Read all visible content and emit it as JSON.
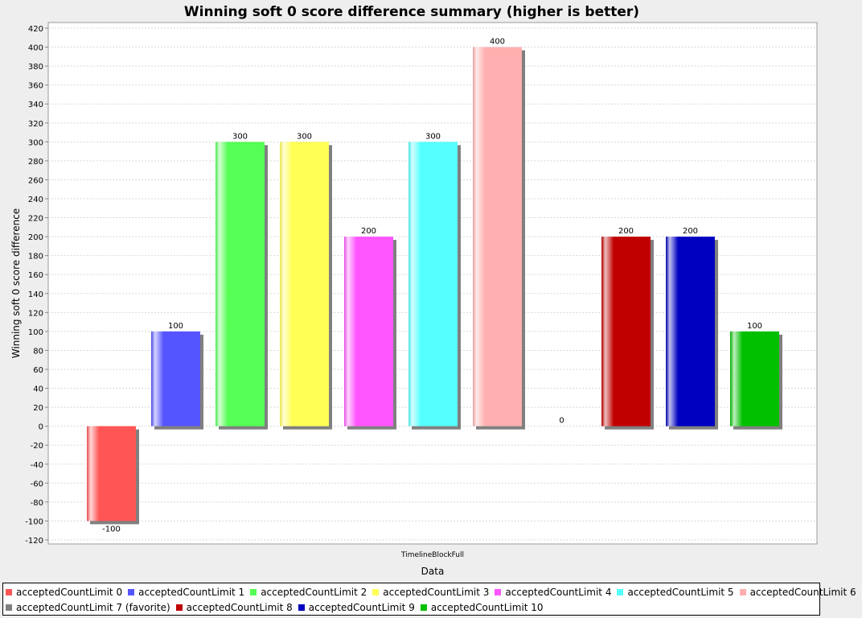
{
  "chart_data": {
    "type": "bar",
    "title": "Winning soft 0 score difference summary (higher is better)",
    "xlabel": "Data",
    "ylabel": "Winning soft 0 score difference",
    "categories": [
      "TimelineBlockFull"
    ],
    "ylim": [
      -120,
      420
    ],
    "ytick_step": 20,
    "grid": true,
    "legend_position": "bottom",
    "series": [
      {
        "name": "acceptedCountLimit 0",
        "values": [
          -100
        ],
        "color": "#ff5555",
        "label": "-100"
      },
      {
        "name": "acceptedCountLimit 1",
        "values": [
          100
        ],
        "color": "#5555ff",
        "label": "100"
      },
      {
        "name": "acceptedCountLimit 2",
        "values": [
          300
        ],
        "color": "#55ff55",
        "label": "300"
      },
      {
        "name": "acceptedCountLimit 3",
        "values": [
          300
        ],
        "color": "#ffff55",
        "label": "300"
      },
      {
        "name": "acceptedCountLimit 4",
        "values": [
          200
        ],
        "color": "#ff55ff",
        "label": "200"
      },
      {
        "name": "acceptedCountLimit 5",
        "values": [
          300
        ],
        "color": "#55ffff",
        "label": "300"
      },
      {
        "name": "acceptedCountLimit 6",
        "values": [
          400
        ],
        "color": "#ffafaf",
        "label": "400"
      },
      {
        "name": "acceptedCountLimit 7 (favorite)",
        "values": [
          0
        ],
        "color": "#808080",
        "label": "0"
      },
      {
        "name": "acceptedCountLimit 8",
        "values": [
          200
        ],
        "color": "#c00000",
        "label": "200"
      },
      {
        "name": "acceptedCountLimit 9",
        "values": [
          200
        ],
        "color": "#0000c0",
        "label": "200"
      },
      {
        "name": "acceptedCountLimit 10",
        "values": [
          100
        ],
        "color": "#00c000",
        "label": "100"
      }
    ]
  }
}
